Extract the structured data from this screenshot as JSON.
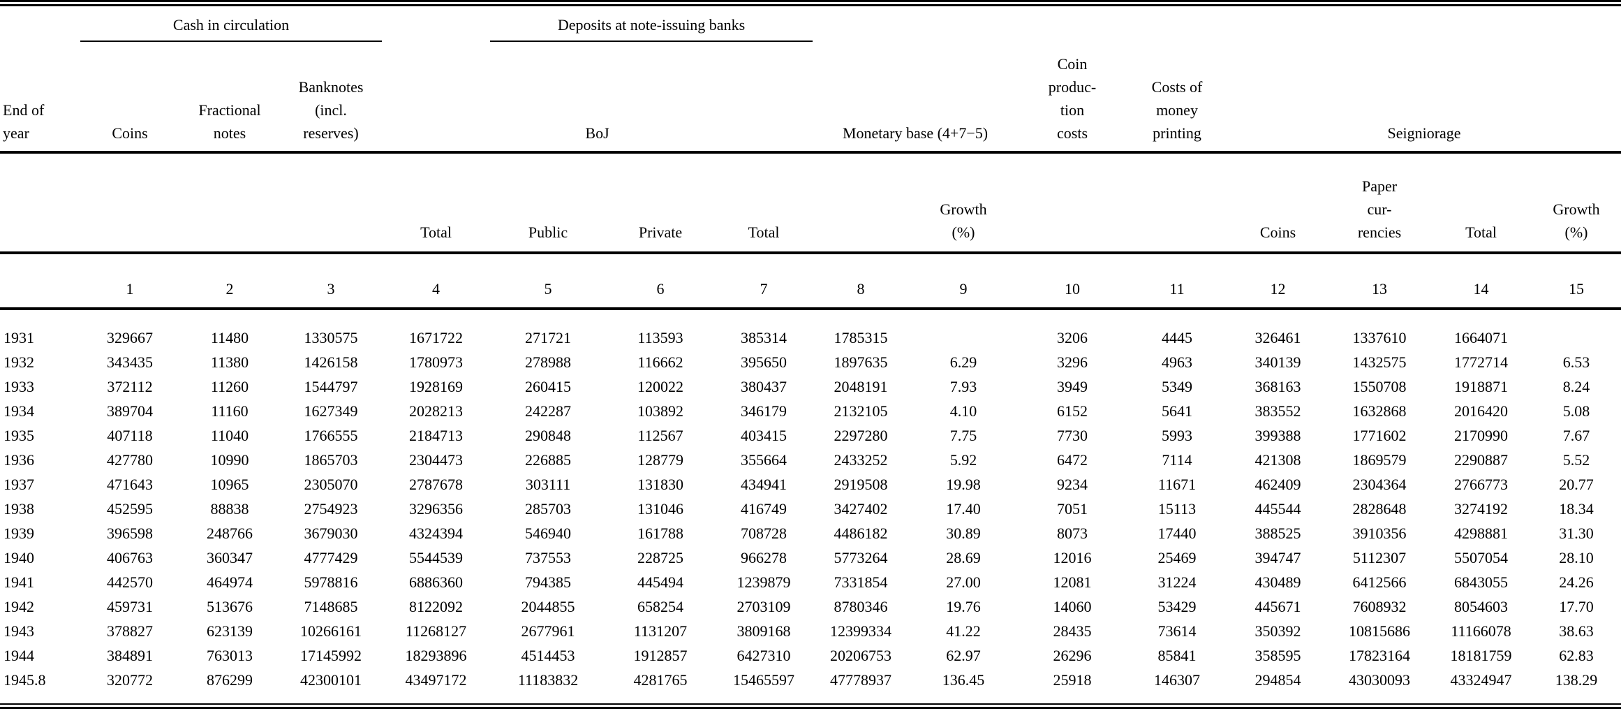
{
  "table": {
    "group_headers": {
      "cash_in_circulation": "Cash in circulation",
      "deposits": "Deposits at note-issuing banks"
    },
    "column_headers": {
      "end_of_year": "End of\nyear",
      "coins": "Coins",
      "fractional_notes": "Fractional\nnotes",
      "banknotes": "Banknotes\n(incl.\nreserves)",
      "boj": "BoJ",
      "monetary_base": "Monetary base (4+7−5)",
      "coin_production_costs": "Coin\nproduc-\ntion\ncosts",
      "costs_of_money_printing": "Costs of\nmoney\nprinting",
      "seigniorage": "Seigniorage"
    },
    "sub_headers": {
      "total_4": "Total",
      "public_5": "Public",
      "private_6": "Private",
      "total_7": "Total",
      "growth_9": "Growth\n(%)",
      "coins_12": "Coins",
      "paper_currencies_13": "Paper\ncur-\nrencies",
      "total_14": "Total",
      "growth_15": "Growth\n(%)"
    },
    "column_numbers": [
      "1",
      "2",
      "3",
      "4",
      "5",
      "6",
      "7",
      "8",
      "9",
      "10",
      "11",
      "12",
      "13",
      "14",
      "15"
    ],
    "rows": [
      {
        "year": "1931",
        "values": [
          "329667",
          "11480",
          "1330575",
          "1671722",
          "271721",
          "113593",
          "385314",
          "1785315",
          "",
          "3206",
          "4445",
          "326461",
          "1337610",
          "1664071",
          ""
        ]
      },
      {
        "year": "1932",
        "values": [
          "343435",
          "11380",
          "1426158",
          "1780973",
          "278988",
          "116662",
          "395650",
          "1897635",
          "6.29",
          "3296",
          "4963",
          "340139",
          "1432575",
          "1772714",
          "6.53"
        ]
      },
      {
        "year": "1933",
        "values": [
          "372112",
          "11260",
          "1544797",
          "1928169",
          "260415",
          "120022",
          "380437",
          "2048191",
          "7.93",
          "3949",
          "5349",
          "368163",
          "1550708",
          "1918871",
          "8.24"
        ]
      },
      {
        "year": "1934",
        "values": [
          "389704",
          "11160",
          "1627349",
          "2028213",
          "242287",
          "103892",
          "346179",
          "2132105",
          "4.10",
          "6152",
          "5641",
          "383552",
          "1632868",
          "2016420",
          "5.08"
        ]
      },
      {
        "year": "1935",
        "values": [
          "407118",
          "11040",
          "1766555",
          "2184713",
          "290848",
          "112567",
          "403415",
          "2297280",
          "7.75",
          "7730",
          "5993",
          "399388",
          "1771602",
          "2170990",
          "7.67"
        ]
      },
      {
        "year": "1936",
        "values": [
          "427780",
          "10990",
          "1865703",
          "2304473",
          "226885",
          "128779",
          "355664",
          "2433252",
          "5.92",
          "6472",
          "7114",
          "421308",
          "1869579",
          "2290887",
          "5.52"
        ]
      },
      {
        "year": "1937",
        "values": [
          "471643",
          "10965",
          "2305070",
          "2787678",
          "303111",
          "131830",
          "434941",
          "2919508",
          "19.98",
          "9234",
          "11671",
          "462409",
          "2304364",
          "2766773",
          "20.77"
        ]
      },
      {
        "year": "1938",
        "values": [
          "452595",
          "88838",
          "2754923",
          "3296356",
          "285703",
          "131046",
          "416749",
          "3427402",
          "17.40",
          "7051",
          "15113",
          "445544",
          "2828648",
          "3274192",
          "18.34"
        ]
      },
      {
        "year": "1939",
        "values": [
          "396598",
          "248766",
          "3679030",
          "4324394",
          "546940",
          "161788",
          "708728",
          "4486182",
          "30.89",
          "8073",
          "17440",
          "388525",
          "3910356",
          "4298881",
          "31.30"
        ]
      },
      {
        "year": "1940",
        "values": [
          "406763",
          "360347",
          "4777429",
          "5544539",
          "737553",
          "228725",
          "966278",
          "5773264",
          "28.69",
          "12016",
          "25469",
          "394747",
          "5112307",
          "5507054",
          "28.10"
        ]
      },
      {
        "year": "1941",
        "values": [
          "442570",
          "464974",
          "5978816",
          "6886360",
          "794385",
          "445494",
          "1239879",
          "7331854",
          "27.00",
          "12081",
          "31224",
          "430489",
          "6412566",
          "6843055",
          "24.26"
        ]
      },
      {
        "year": "1942",
        "values": [
          "459731",
          "513676",
          "7148685",
          "8122092",
          "2044855",
          "658254",
          "2703109",
          "8780346",
          "19.76",
          "14060",
          "53429",
          "445671",
          "7608932",
          "8054603",
          "17.70"
        ]
      },
      {
        "year": "1943",
        "values": [
          "378827",
          "623139",
          "10266161",
          "11268127",
          "2677961",
          "1131207",
          "3809168",
          "12399334",
          "41.22",
          "28435",
          "73614",
          "350392",
          "10815686",
          "11166078",
          "38.63"
        ]
      },
      {
        "year": "1944",
        "values": [
          "384891",
          "763013",
          "17145992",
          "18293896",
          "4514453",
          "1912857",
          "6427310",
          "20206753",
          "62.97",
          "26296",
          "85841",
          "358595",
          "17823164",
          "18181759",
          "62.83"
        ]
      },
      {
        "year": "1945.8",
        "values": [
          "320772",
          "876299",
          "42300101",
          "43497172",
          "11183832",
          "4281765",
          "15465597",
          "47778937",
          "136.45",
          "25918",
          "146307",
          "294854",
          "43030093",
          "43324947",
          "138.29"
        ]
      }
    ]
  }
}
